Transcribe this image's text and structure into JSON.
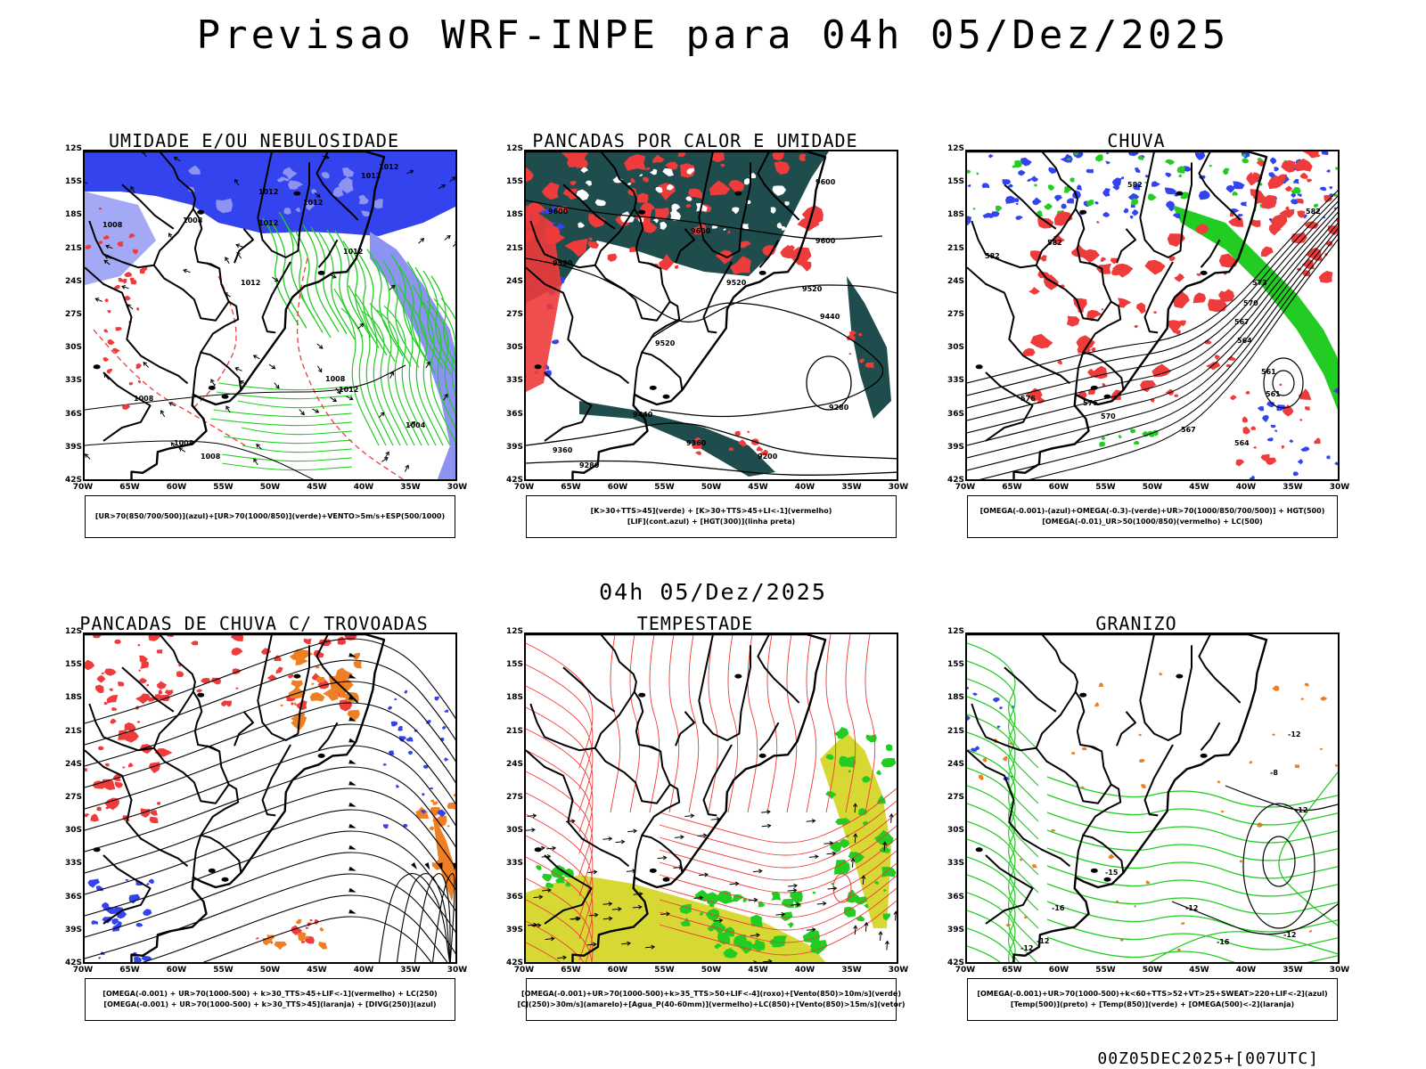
{
  "title": "Previsao WRF-INPE  para 04h 05/Dez/2025",
  "mid_title": "04h 05/Dez/2025",
  "footer": "00Z05DEC2025+[007UTC]",
  "lat_labels": [
    "12S",
    "15S",
    "18S",
    "21S",
    "24S",
    "27S",
    "30S",
    "33S",
    "36S",
    "39S",
    "42S"
  ],
  "lon_labels": [
    "70W",
    "65W",
    "60W",
    "55W",
    "50W",
    "45W",
    "40W",
    "35W",
    "30W"
  ],
  "colors": {
    "blue": "#3344ee",
    "light_blue": "#8c93f2",
    "green": "#22cc22",
    "red": "#ee3b3b",
    "dark_teal": "#1f4d4d",
    "orange": "#ee7f22",
    "yellow": "#d8d834",
    "black": "#000000"
  },
  "panels": [
    {
      "title": "UMIDADE E/OU NEBULOSIDADE",
      "legend": [
        "[UR>70(850/700/500)](azul)+[UR>70(1000/850)](verde)+VENTO>5m/s+ESP(500/1000)"
      ],
      "labels": [
        "1012",
        "1012",
        "1012",
        "1012",
        "1008",
        "1008",
        "1012",
        "1012",
        "1008",
        "1004",
        "1008",
        "1008",
        "1008",
        "1012",
        "1012"
      ]
    },
    {
      "title": "PANCADAS POR CALOR E UMIDADE",
      "legend": [
        "[K>30+TTS>45](verde)  +  [K>30+TTS>45+LI<-1](vermelho)",
        "[LIF](cont.azul)  +  [HGT(300)](linha preta)"
      ],
      "labels": [
        "9600",
        "9600",
        "9600",
        "9600",
        "9520",
        "9520",
        "9520",
        "9520",
        "9440",
        "9360",
        "9280",
        "9360",
        "9280",
        "9200",
        "9440"
      ]
    },
    {
      "title": "CHUVA",
      "legend": [
        "[OMEGA(-0.001)-(azul)+OMEGA(-0.3)-(verde)+UR>70(1000/850/700/500)]  +  HGT(500)",
        "[OMEGA(-0.01)_UR>50(1000/850)(vermelho)  +  LC(500)"
      ],
      "labels": [
        "582",
        "582",
        "582",
        "582",
        "576",
        "576",
        "573",
        "570",
        "567",
        "564",
        "561",
        "561",
        "564",
        "567",
        "570"
      ]
    },
    {
      "title": "PANCADAS DE CHUVA C/ TROVOADAS",
      "legend": [
        "[OMEGA(-0.001)  +  UR>70(1000-500)  +  k>30_TTS>45+LIF<-1](vermelho)  +  LC(250)",
        "[OMEGA(-0.001)  +  UR>70(1000-500)  +  k>30_TTS>45](laranja)  +  [DIVG(250)](azul)"
      ],
      "labels": []
    },
    {
      "title": "TEMPESTADE",
      "legend": [
        "[OMEGA(-0.001)+UR>70(1000-500)+k>35_TTS>50+LIF<-4](roxo)+[Vento(850)>10m/s](verde)",
        "[CJ(250)>30m/s](amarelo)+[Agua_P(40-60mm)](vermelho)+LC(850)+[Vento(850)>15m/s](vetor)"
      ],
      "labels": []
    },
    {
      "title": "GRANIZO",
      "legend": [
        "[OMEGA(-0.001)+UR>70(1000-500)+k<60+TTS>52+VT>25+SWEAT>220+LIF<-2](azul)",
        "[Temp(500)](preto)  +  [Temp(850)](verde)  +  [OMEGA(500)<-2](laranja)"
      ],
      "labels": [
        "-12",
        "-12",
        "-12",
        "-12",
        "-12",
        "-16",
        "-15",
        "-16",
        "-8",
        "-12"
      ]
    }
  ]
}
